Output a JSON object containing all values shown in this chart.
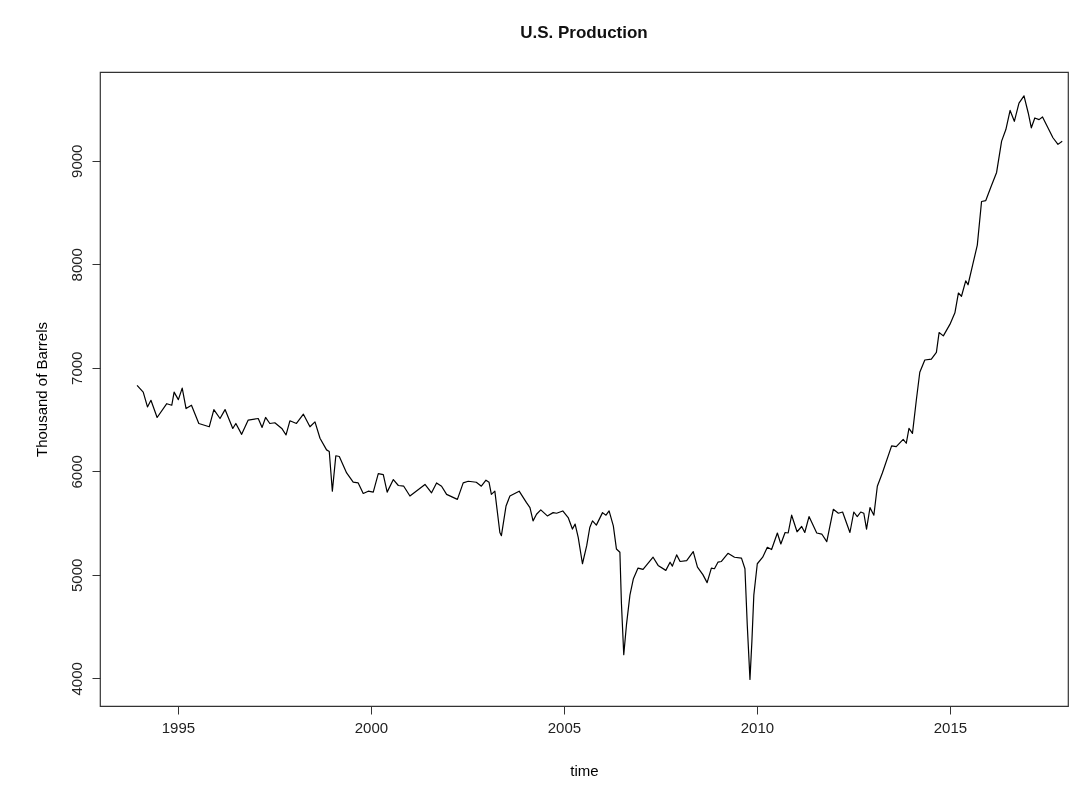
{
  "chart_data": {
    "type": "line",
    "title": "U.S. Production",
    "xlabel": "time",
    "ylabel": "Thousand of Barrels",
    "x": [
      1993.94,
      1994.1,
      1994.21,
      1994.3,
      1994.46,
      1994.71,
      1994.84,
      1994.9,
      1995.01,
      1995.11,
      1995.21,
      1995.35,
      1995.54,
      1995.81,
      1995.93,
      1996.09,
      1996.22,
      1996.42,
      1996.5,
      1996.65,
      1996.82,
      1997.08,
      1997.18,
      1997.27,
      1997.38,
      1997.51,
      1997.69,
      1997.8,
      1997.9,
      1998.07,
      1998.25,
      1998.42,
      1998.55,
      1998.68,
      1998.85,
      1998.92,
      1999.0,
      1999.09,
      1999.18,
      1999.37,
      1999.54,
      1999.67,
      1999.8,
      1999.93,
      2000.06,
      2000.19,
      2000.32,
      2000.42,
      2000.58,
      2000.71,
      2000.85,
      2001.01,
      2001.4,
      2001.57,
      2001.7,
      2001.83,
      2001.96,
      2002.24,
      2002.39,
      2002.52,
      2002.73,
      2002.86,
      2002.98,
      2003.06,
      2003.12,
      2003.21,
      2003.34,
      2003.38,
      2003.5,
      2003.6,
      2003.84,
      2004.03,
      2004.12,
      2004.2,
      2004.29,
      2004.4,
      2004.57,
      2004.72,
      2004.81,
      2004.97,
      2005.11,
      2005.22,
      2005.29,
      2005.37,
      2005.48,
      2005.59,
      2005.67,
      2005.74,
      2005.84,
      2006.0,
      2006.09,
      2006.17,
      2006.28,
      2006.36,
      2006.45,
      2006.49,
      2006.55,
      2006.62,
      2006.71,
      2006.8,
      2006.92,
      2007.05,
      2007.31,
      2007.44,
      2007.64,
      2007.75,
      2007.81,
      2007.92,
      2008.01,
      2008.18,
      2008.35,
      2008.46,
      2008.6,
      2008.71,
      2008.82,
      2008.9,
      2008.99,
      2009.08,
      2009.25,
      2009.42,
      2009.6,
      2009.69,
      2009.75,
      2009.82,
      2009.87,
      2009.92,
      2010.01,
      2010.15,
      2010.27,
      2010.38,
      2010.53,
      2010.62,
      2010.73,
      2010.81,
      2010.9,
      2011.04,
      2011.16,
      2011.24,
      2011.35,
      2011.55,
      2011.68,
      2011.81,
      2011.98,
      2012.11,
      2012.22,
      2012.41,
      2012.51,
      2012.6,
      2012.69,
      2012.77,
      2012.84,
      2012.93,
      2013.03,
      2013.12,
      2013.25,
      2013.49,
      2013.61,
      2013.79,
      2013.87,
      2013.94,
      2014.03,
      2014.13,
      2014.22,
      2014.35,
      2014.52,
      2014.65,
      2014.72,
      2014.83,
      2015.0,
      2015.13,
      2015.22,
      2015.3,
      2015.41,
      2015.47,
      2015.59,
      2015.71,
      2015.82,
      2015.93,
      2016.06,
      2016.21,
      2016.34,
      2016.45,
      2016.56,
      2016.67,
      2016.79,
      2016.92,
      2017.03,
      2017.11,
      2017.2,
      2017.31,
      2017.4,
      2017.54,
      2017.67,
      2017.8,
      2017.91
    ],
    "series": [
      {
        "color": "#000000",
        "values": [
          6830,
          6765,
          6622,
          6686,
          6520,
          6653,
          6638,
          6765,
          6692,
          6804,
          6606,
          6638,
          6462,
          6430,
          6596,
          6510,
          6596,
          6414,
          6462,
          6357,
          6495,
          6510,
          6424,
          6520,
          6462,
          6469,
          6414,
          6351,
          6488,
          6462,
          6552,
          6430,
          6478,
          6319,
          6207,
          6191,
          5808,
          6150,
          6143,
          5984,
          5895,
          5888,
          5786,
          5808,
          5799,
          5978,
          5968,
          5799,
          5920,
          5863,
          5856,
          5761,
          5873,
          5792,
          5888,
          5856,
          5777,
          5729,
          5888,
          5904,
          5894,
          5856,
          5914,
          5894,
          5777,
          5808,
          5409,
          5378,
          5665,
          5761,
          5808,
          5697,
          5649,
          5521,
          5585,
          5627,
          5569,
          5601,
          5595,
          5617,
          5553,
          5442,
          5490,
          5361,
          5107,
          5282,
          5457,
          5521,
          5480,
          5601,
          5576,
          5617,
          5473,
          5250,
          5218,
          4724,
          4229,
          4516,
          4804,
          4963,
          5065,
          5052,
          5170,
          5091,
          5043,
          5122,
          5084,
          5193,
          5129,
          5138,
          5225,
          5075,
          5002,
          4925,
          5065,
          5059,
          5122,
          5129,
          5208,
          5170,
          5161,
          5059,
          4516,
          3990,
          4357,
          4804,
          5107,
          5170,
          5266,
          5244,
          5404,
          5298,
          5409,
          5404,
          5576,
          5416,
          5467,
          5409,
          5563,
          5404,
          5394,
          5320,
          5633,
          5595,
          5607,
          5409,
          5607,
          5563,
          5607,
          5595,
          5442,
          5649,
          5576,
          5856,
          5984,
          6246,
          6239,
          6309,
          6271,
          6414,
          6366,
          6686,
          6957,
          7075,
          7084,
          7148,
          7340,
          7308,
          7419,
          7531,
          7722,
          7691,
          7840,
          7802,
          7993,
          8185,
          8606,
          8615,
          8743,
          8887,
          9189,
          9301,
          9486,
          9381,
          9557,
          9627,
          9461,
          9318,
          9413,
          9397,
          9423,
          9318,
          9222,
          9158,
          9189
        ]
      }
    ],
    "xlim": [
      1992.98,
      2018.06
    ],
    "xticks": [
      1995,
      2000,
      2005,
      2010,
      2015
    ],
    "ylim": [
      3733,
      9857
    ],
    "yticks": [
      4000,
      5000,
      6000,
      7000,
      8000,
      9000
    ],
    "line_style": "solid"
  }
}
